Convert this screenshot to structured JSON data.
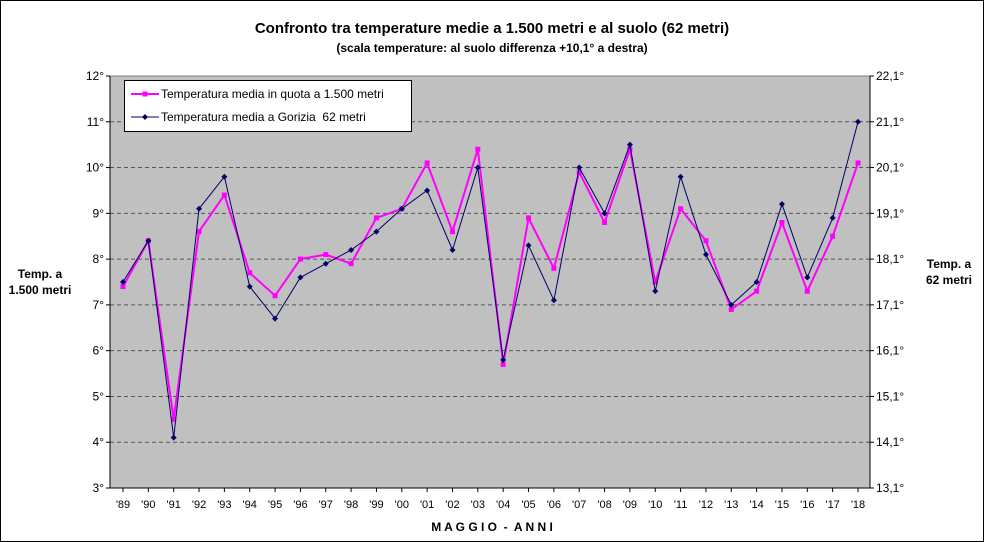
{
  "chart_data": {
    "type": "line",
    "title": "Confronto tra temperature medie a 1.500 metri e al suolo (62 metri)",
    "subtitle": "(scala temperature: al suolo differenza +10,1° a destra)",
    "xlabel": "M A G G I O  -  A N N I",
    "ylabel_left": [
      "Temp. a",
      "1.500 metri"
    ],
    "ylabel_right": [
      "Temp. a",
      "62 metri"
    ],
    "ylim": [
      3,
      12
    ],
    "y_ticks_left": [
      "12°",
      "11°",
      "10°",
      "9°",
      "8°",
      "7°",
      "6°",
      "5°",
      "4°",
      "3°"
    ],
    "y_ticks_right": [
      "22,1°",
      "21,1°",
      "20,1°",
      "19,1°",
      "18,1°",
      "17,1°",
      "16,1°",
      "15,1°",
      "14,1°",
      "13,1°"
    ],
    "categories": [
      "'89",
      "'90",
      "'91",
      "'92",
      "'93",
      "'94",
      "'95",
      "'96",
      "'97",
      "'98",
      "'99",
      "'00",
      "'01",
      "'02",
      "'03",
      "'04",
      "'05",
      "'06",
      "'07",
      "'08",
      "'09",
      "'10",
      "'11",
      "'12",
      "'13",
      "'14",
      "'15",
      "'16",
      "'17",
      "'18"
    ],
    "series": [
      {
        "name": "Temperatura media in quota a 1.500 metri",
        "color": "#ff00ff",
        "marker": "square",
        "values": [
          7.4,
          8.4,
          4.5,
          8.6,
          9.4,
          7.7,
          7.2,
          8.0,
          8.1,
          7.9,
          8.9,
          9.1,
          10.1,
          8.6,
          10.4,
          5.7,
          8.9,
          7.8,
          9.9,
          8.8,
          10.4,
          7.5,
          9.1,
          8.4,
          6.9,
          7.3,
          8.8,
          7.3,
          8.5,
          10.1
        ]
      },
      {
        "name": "Temperatura media a Gorizia  62 metri",
        "color": "#000066",
        "marker": "diamond",
        "values": [
          7.5,
          8.4,
          4.1,
          9.1,
          9.8,
          7.4,
          6.7,
          7.6,
          7.9,
          8.2,
          8.6,
          9.1,
          9.5,
          8.2,
          10.0,
          5.8,
          8.3,
          7.1,
          10.0,
          9.0,
          10.5,
          7.3,
          9.8,
          8.1,
          7.0,
          7.5,
          9.2,
          7.6,
          8.9,
          11.0
        ]
      }
    ],
    "grid": true,
    "legend_position": "top-left",
    "plot_background": "#c0c0c0"
  }
}
